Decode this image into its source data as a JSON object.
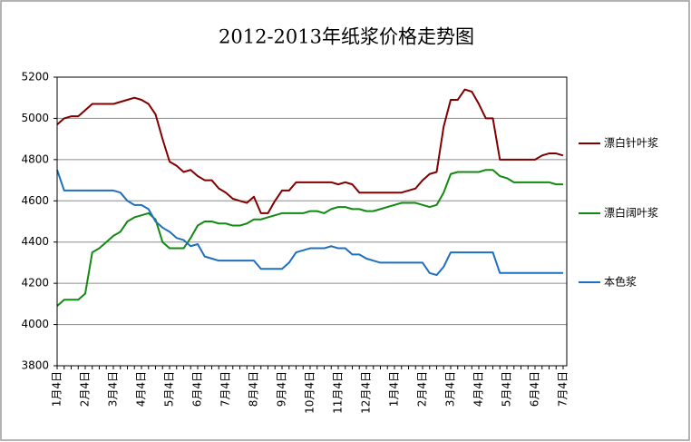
{
  "chart_data": {
    "type": "line",
    "title": "2012-2013年纸浆价格走势图",
    "categories": [
      "1月4日",
      null,
      null,
      null,
      "2月4日",
      null,
      null,
      null,
      "3月4日",
      null,
      null,
      null,
      "4月4日",
      null,
      null,
      null,
      "5月4日",
      null,
      null,
      null,
      "6月4日",
      null,
      null,
      null,
      "7月4日",
      null,
      null,
      null,
      "8月4日",
      null,
      null,
      null,
      "9月4日",
      null,
      null,
      null,
      "10月4日",
      null,
      null,
      null,
      "11月4日",
      null,
      null,
      null,
      "12月4日",
      null,
      null,
      null,
      "1月4日",
      null,
      null,
      null,
      "2月4日",
      null,
      null,
      null,
      "3月4日",
      null,
      null,
      null,
      "4月4日",
      null,
      null,
      null,
      "5月4日",
      null,
      null,
      null,
      "6月4日",
      null,
      null,
      null,
      "7月4日"
    ],
    "series": [
      {
        "name": "漂白针叶浆",
        "color": "#800000",
        "values": [
          4970,
          5000,
          5010,
          5010,
          5040,
          5070,
          5070,
          5070,
          5070,
          5080,
          5090,
          5100,
          5090,
          5070,
          5020,
          4900,
          4790,
          4770,
          4740,
          4750,
          4720,
          4700,
          4700,
          4660,
          4640,
          4610,
          4600,
          4590,
          4620,
          4540,
          4540,
          4600,
          4650,
          4650,
          4690,
          4690,
          4690,
          4690,
          4690,
          4690,
          4680,
          4690,
          4680,
          4640,
          4640,
          4640,
          4640,
          4640,
          4640,
          4640,
          4650,
          4660,
          4700,
          4730,
          4740,
          4960,
          5090,
          5090,
          5140,
          5130,
          5070,
          5000,
          5000,
          4800,
          4800,
          4800,
          4800,
          4800,
          4800,
          4820,
          4830,
          4830,
          4820
        ]
      },
      {
        "name": "漂白阔叶浆",
        "color": "#118a11",
        "values": [
          4090,
          4120,
          4120,
          4120,
          4150,
          4350,
          4370,
          4400,
          4430,
          4450,
          4500,
          4520,
          4530,
          4540,
          4510,
          4400,
          4370,
          4370,
          4370,
          4420,
          4480,
          4500,
          4500,
          4490,
          4490,
          4480,
          4480,
          4490,
          4510,
          4510,
          4520,
          4530,
          4540,
          4540,
          4540,
          4540,
          4550,
          4550,
          4540,
          4560,
          4570,
          4570,
          4560,
          4560,
          4550,
          4550,
          4560,
          4570,
          4580,
          4590,
          4590,
          4590,
          4580,
          4570,
          4580,
          4640,
          4730,
          4740,
          4740,
          4740,
          4740,
          4750,
          4750,
          4720,
          4710,
          4690,
          4690,
          4690,
          4690,
          4690,
          4690,
          4680,
          4680
        ]
      },
      {
        "name": "本色浆",
        "color": "#1f6fbf",
        "values": [
          4750,
          4650,
          4650,
          4650,
          4650,
          4650,
          4650,
          4650,
          4650,
          4640,
          4600,
          4580,
          4580,
          4560,
          4500,
          4470,
          4450,
          4420,
          4410,
          4380,
          4390,
          4330,
          4320,
          4310,
          4310,
          4310,
          4310,
          4310,
          4310,
          4270,
          4270,
          4270,
          4270,
          4300,
          4350,
          4360,
          4370,
          4370,
          4370,
          4380,
          4370,
          4370,
          4340,
          4340,
          4320,
          4310,
          4300,
          4300,
          4300,
          4300,
          4300,
          4300,
          4300,
          4250,
          4240,
          4280,
          4350,
          4350,
          4350,
          4350,
          4350,
          4350,
          4350,
          4250,
          4250,
          4250,
          4250,
          4250,
          4250,
          4250,
          4250,
          4250,
          4250
        ]
      }
    ],
    "ylim": [
      3800,
      5200
    ],
    "yticks": [
      3800,
      4000,
      4200,
      4400,
      4600,
      4800,
      5000,
      5200
    ],
    "grid": true,
    "legend": "right"
  }
}
